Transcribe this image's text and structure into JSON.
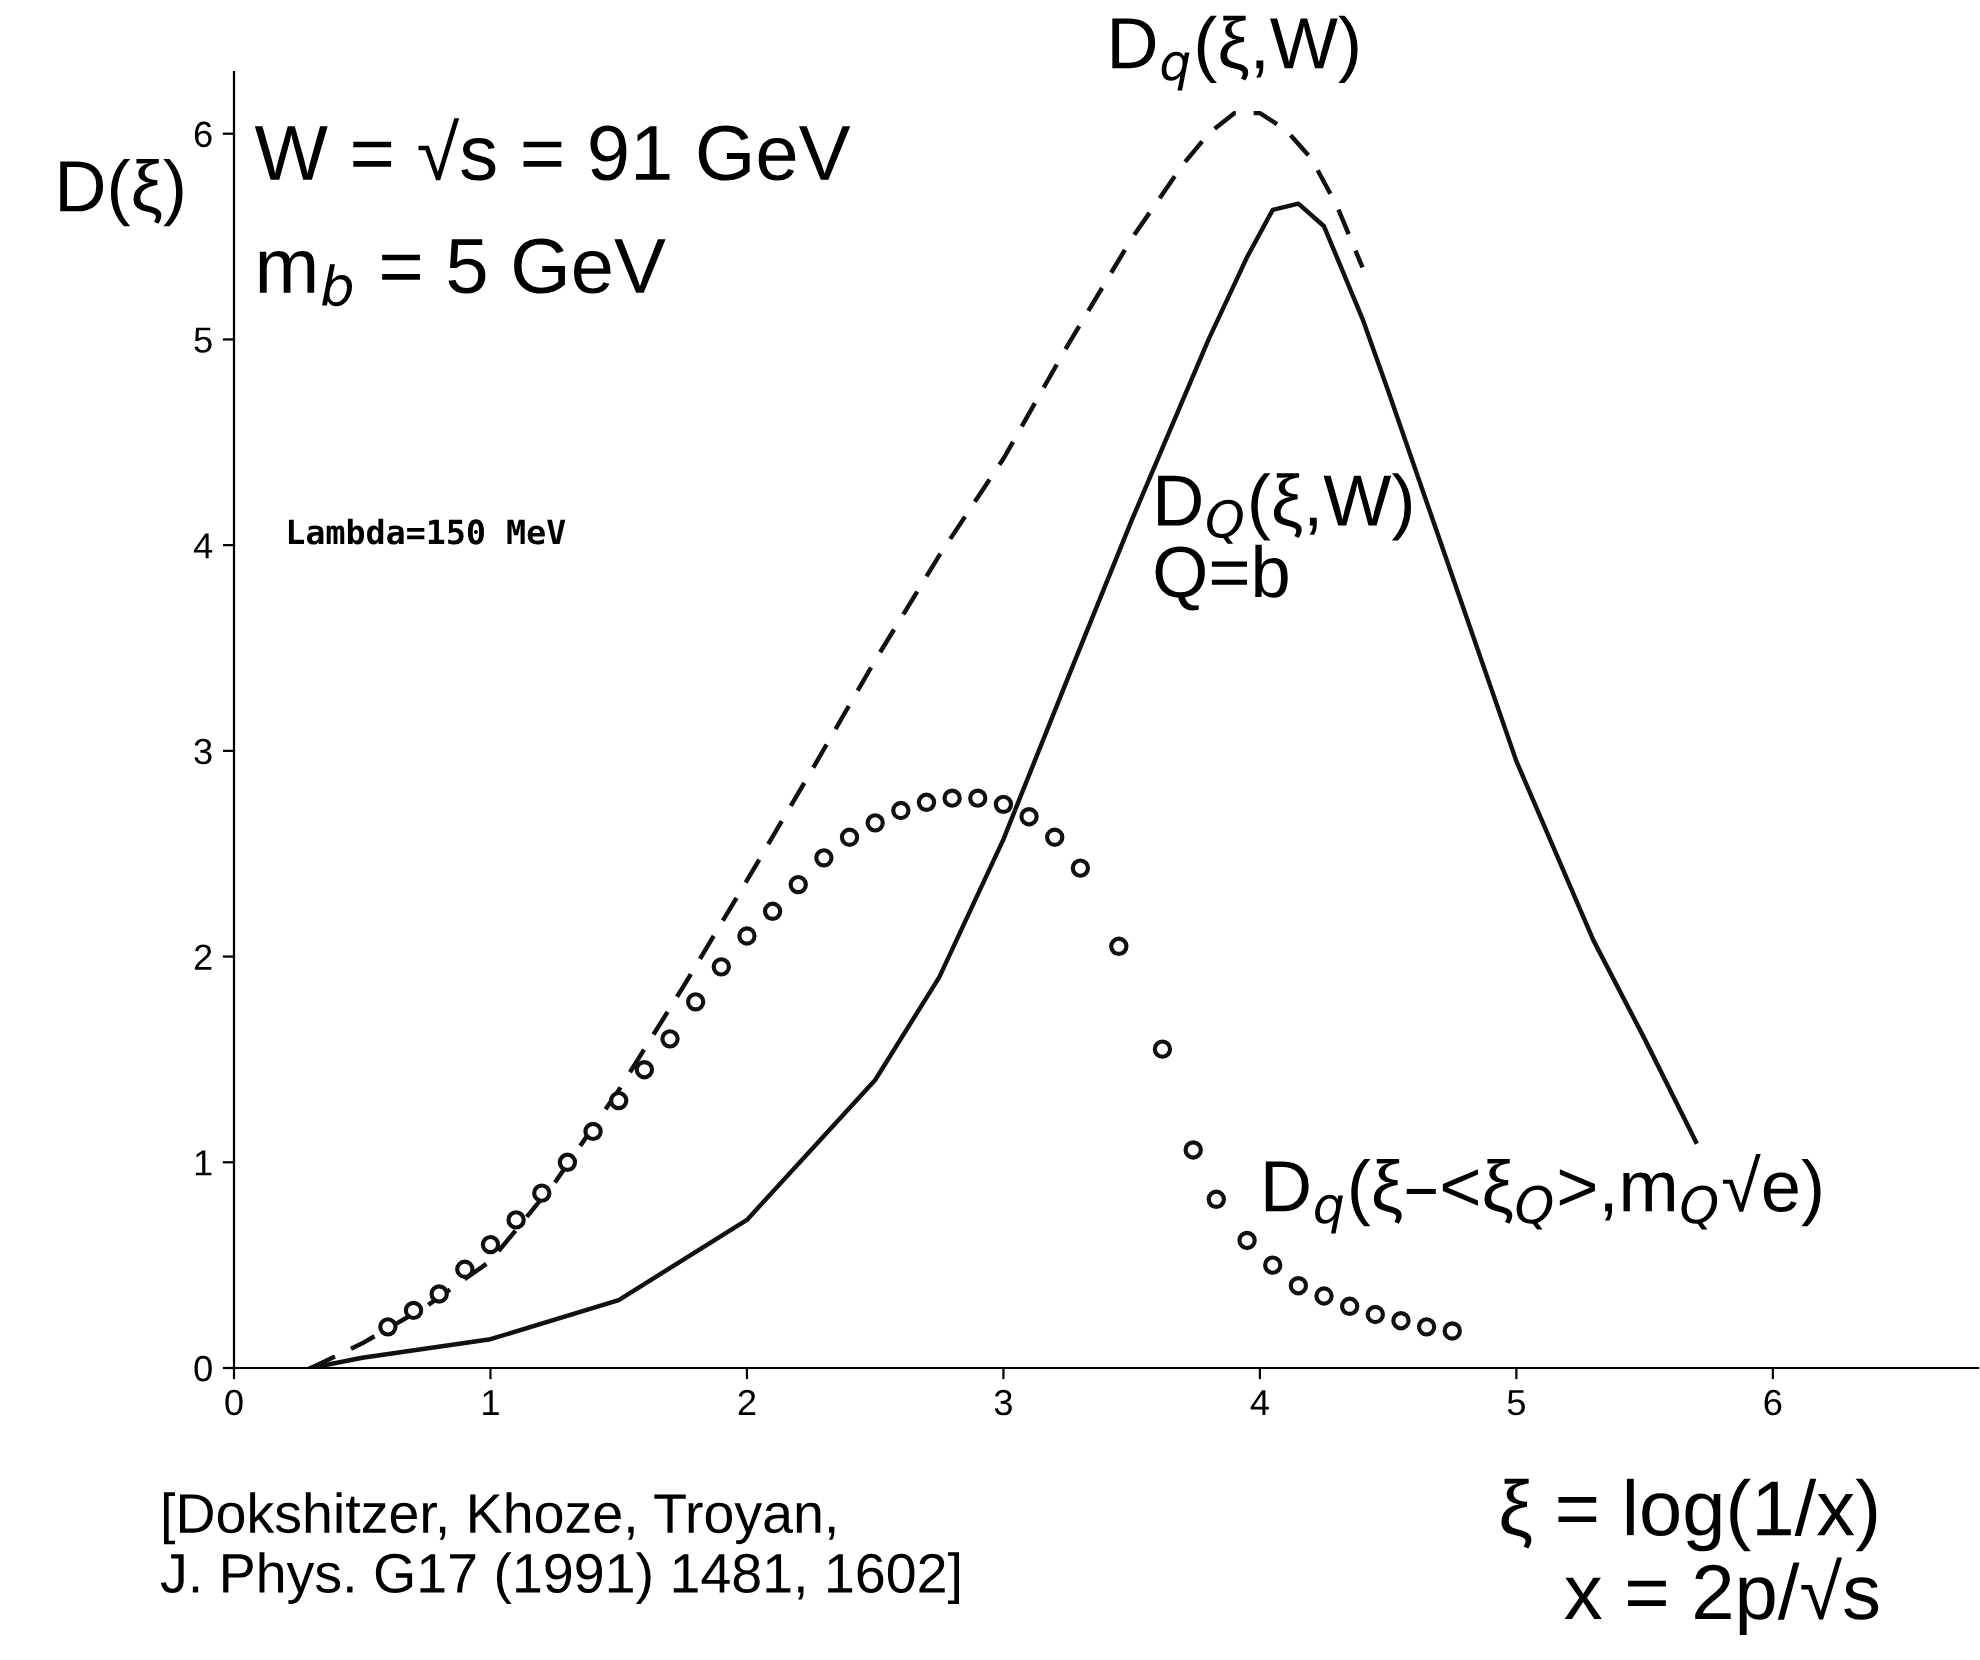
{
  "chart_data": {
    "type": "line",
    "xlabel": "ξ = log(1/x)\nx = 2p/√s",
    "ylabel": "D(ξ)",
    "xlim": [
      0,
      6.8
    ],
    "ylim": [
      0,
      6.3
    ],
    "xticks": [
      0,
      1,
      2,
      3,
      4,
      5,
      6
    ],
    "yticks": [
      0,
      1,
      2,
      3,
      4,
      5,
      6
    ],
    "grid": false,
    "legend": false,
    "series": [
      {
        "line_style": "dashed",
        "color": "#111111",
        "x": [
          0.3,
          0.5,
          0.75,
          1.0,
          1.25,
          1.5,
          1.75,
          2.0,
          2.25,
          2.5,
          2.75,
          3.0,
          3.25,
          3.5,
          3.7,
          3.8,
          3.9,
          4.0,
          4.1,
          4.2,
          4.3,
          4.4
        ],
        "values": [
          0.0,
          0.12,
          0.3,
          0.52,
          0.9,
          1.35,
          1.85,
          2.37,
          2.9,
          3.44,
          3.95,
          4.42,
          4.97,
          5.49,
          5.85,
          6.0,
          6.1,
          6.1,
          6.02,
          5.88,
          5.65,
          5.35
        ]
      },
      {
        "line_style": "solid",
        "color": "#111111",
        "x": [
          0.3,
          0.5,
          1.0,
          1.5,
          2.0,
          2.5,
          2.75,
          3.0,
          3.25,
          3.5,
          3.8,
          3.95,
          4.05,
          4.15,
          4.25,
          4.4,
          4.5,
          4.75,
          5.0,
          5.3,
          5.5,
          5.7
        ],
        "values": [
          0.0,
          0.05,
          0.14,
          0.33,
          0.72,
          1.4,
          1.9,
          2.57,
          3.35,
          4.12,
          5.0,
          5.4,
          5.63,
          5.66,
          5.55,
          5.1,
          4.75,
          3.85,
          2.95,
          2.08,
          1.6,
          1.1
        ]
      },
      {
        "type": "scatter",
        "marker": "circle",
        "color": "#111111",
        "x": [
          0.6,
          0.7,
          0.8,
          0.9,
          1.0,
          1.1,
          1.2,
          1.3,
          1.4,
          1.5,
          1.6,
          1.7,
          1.8,
          1.9,
          2.0,
          2.1,
          2.2,
          2.3,
          2.4,
          2.5,
          2.6,
          2.7,
          2.8,
          2.9,
          3.0,
          3.1,
          3.2,
          3.3,
          3.45,
          3.62,
          3.74,
          3.83,
          3.95,
          4.05,
          4.15,
          4.25,
          4.35,
          4.45,
          4.55,
          4.65,
          4.75
        ],
        "values": [
          0.2,
          0.28,
          0.36,
          0.48,
          0.6,
          0.72,
          0.85,
          1.0,
          1.15,
          1.3,
          1.45,
          1.6,
          1.78,
          1.95,
          2.1,
          2.22,
          2.35,
          2.48,
          2.58,
          2.65,
          2.71,
          2.75,
          2.77,
          2.77,
          2.74,
          2.68,
          2.58,
          2.43,
          2.05,
          1.55,
          1.06,
          0.82,
          0.62,
          0.5,
          0.4,
          0.35,
          0.3,
          0.26,
          0.23,
          0.2,
          0.18
        ]
      }
    ],
    "annotations": [
      "W = √s = 91 GeV",
      "m$_{b}$ = 5 GeV",
      {
        "text": "D$_{q}$(ξ,W)",
        "x": 3.9,
        "y": 6.1
      },
      "D$_{Q}$(ξ,W)\nQ=b",
      {
        "text": "D$_{q}$(ξ–<ξ$_{Q}$>,m$_{Q}$√e)",
        "x": 4.0,
        "y": 0.65
      },
      "Lambda=150 MeV",
      "[Dokshitzer, Khoze, Troyan,\nJ. Phys. G17 (1991) 1481, 1602]"
    ]
  }
}
